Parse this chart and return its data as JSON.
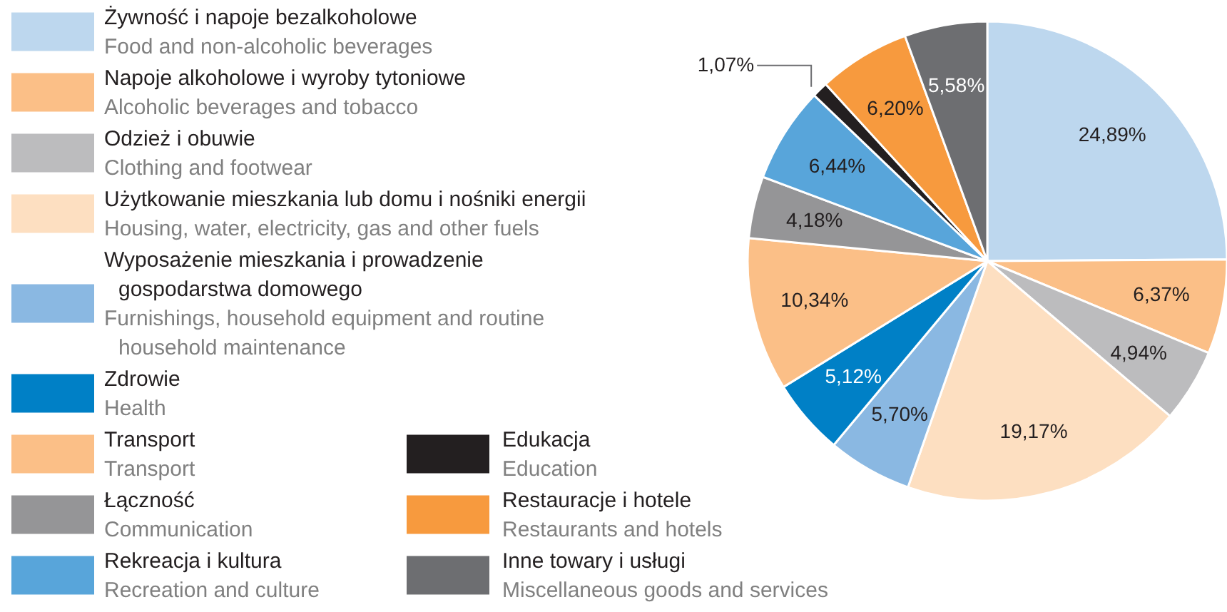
{
  "chart_data": {
    "type": "pie",
    "legend": "left",
    "categories": [
      "Żywność i napoje bezalkoholowe\n\nFood and non-alcoholic beverages",
      "Napoje alkoholowe i wyroby tytoniowe\n\nAlcoholic beverages and tobacco",
      "Odzież i obuwie\n\nClothing and footwear",
      "Użytkowanie mieszkania lub domu i nośniki energii\n\nHousing, water, electricity, gas and other fuels",
      "Wyposażenie mieszkania i prowadzenie\ngospodarstwa domowego\n\nFurnishings, household equipment and routine\nhousehold maintenance",
      "Zdrowie\n\nHealth",
      "Transport\n\nTransport",
      "Łączność\n\nCommunication",
      "Rekreacja i kultura\n\nRecreation and culture",
      "Edukacja\n\nEducation",
      "Restauracje i hotele\n\nRestaurants and hotels",
      "Inne towary i usługi\n\nMiscellaneous goods and services"
    ],
    "values": [
      24.89,
      6.37,
      4.94,
      19.17,
      5.7,
      5.12,
      10.34,
      4.18,
      6.44,
      1.07,
      6.2,
      5.58
    ],
    "value_labels": [
      "24,89%",
      "6,37%",
      "4,94%",
      "19,17%",
      "5,70%",
      "5,12%",
      "10,34%",
      "4,18%",
      "6,44%",
      "1,07%",
      "6,20%",
      "5,58%"
    ],
    "colors": [
      "#bdd7ee",
      "#fbbf87",
      "#bcbcbe",
      "#fddfc1",
      "#8ab8e2",
      "#0080c6",
      "#fbbf87",
      "#959597",
      "#58a5da",
      "#231f20",
      "#f79a3e",
      "#6d6e71"
    ]
  }
}
